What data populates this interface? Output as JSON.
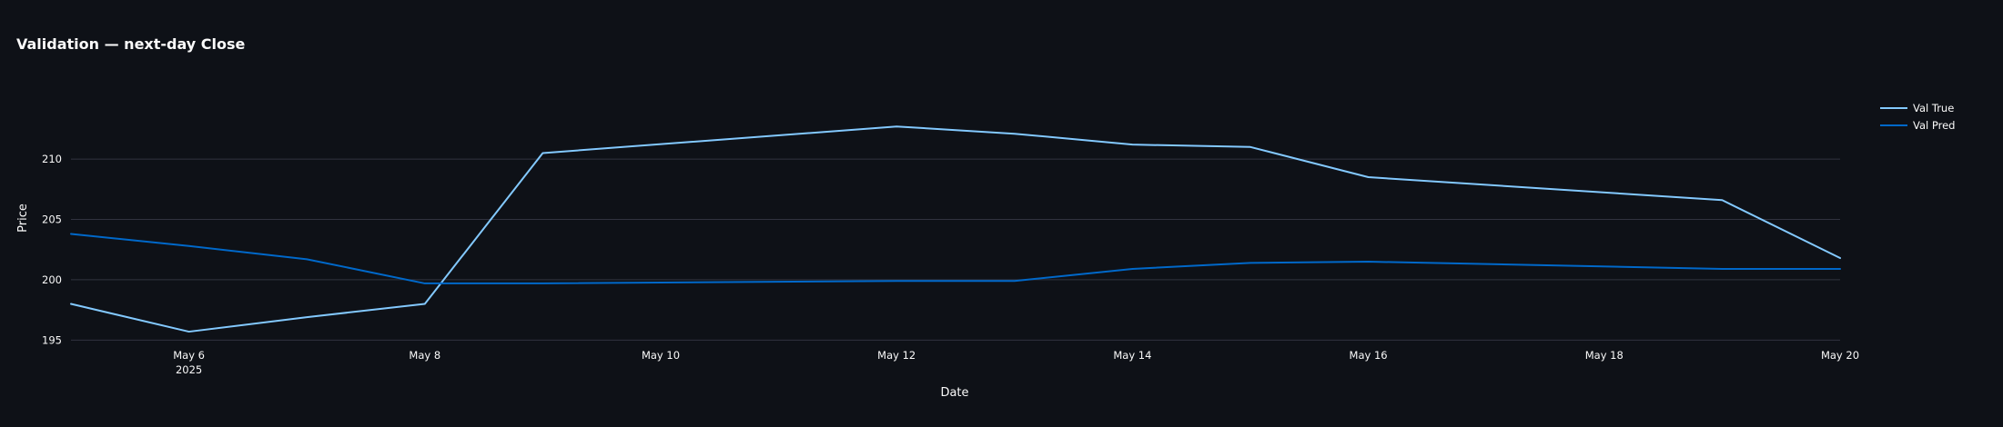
{
  "chart_data": {
    "type": "line",
    "title": "Validation — next-day Close",
    "xlabel": "Date",
    "ylabel": "Price",
    "x": [
      "2025-05-05",
      "2025-05-06",
      "2025-05-07",
      "2025-05-08",
      "2025-05-09",
      "2025-05-12",
      "2025-05-13",
      "2025-05-14",
      "2025-05-15",
      "2025-05-16",
      "2025-05-19",
      "2025-05-20"
    ],
    "series": [
      {
        "name": "Val True",
        "color": "#83c9ff",
        "values": [
          198.0,
          195.7,
          196.9,
          198.0,
          210.5,
          212.7,
          212.1,
          211.2,
          211.0,
          208.5,
          206.6,
          201.8
        ]
      },
      {
        "name": "Val Pred",
        "color": "#0068c9",
        "values": [
          203.8,
          202.8,
          201.7,
          199.7,
          199.7,
          199.9,
          199.9,
          200.9,
          201.4,
          201.5,
          200.9,
          200.9
        ]
      }
    ],
    "xlim": [
      "2025-05-05",
      "2025-05-20"
    ],
    "ylim": [
      194.5,
      214.9
    ],
    "x_ticks": [
      {
        "date": "2025-05-06",
        "label": "May 6",
        "sublabel": "2025"
      },
      {
        "date": "2025-05-08",
        "label": "May 8",
        "sublabel": ""
      },
      {
        "date": "2025-05-10",
        "label": "May 10",
        "sublabel": ""
      },
      {
        "date": "2025-05-12",
        "label": "May 12",
        "sublabel": ""
      },
      {
        "date": "2025-05-14",
        "label": "May 14",
        "sublabel": ""
      },
      {
        "date": "2025-05-16",
        "label": "May 16",
        "sublabel": ""
      },
      {
        "date": "2025-05-18",
        "label": "May 18",
        "sublabel": ""
      },
      {
        "date": "2025-05-20",
        "label": "May 20",
        "sublabel": ""
      }
    ],
    "y_ticks": [
      195,
      200,
      205,
      210
    ],
    "grid": true,
    "legend": "top-right"
  },
  "colors": {
    "background": "#0e1117",
    "grid": "#31333f",
    "text": "#fafafa"
  }
}
